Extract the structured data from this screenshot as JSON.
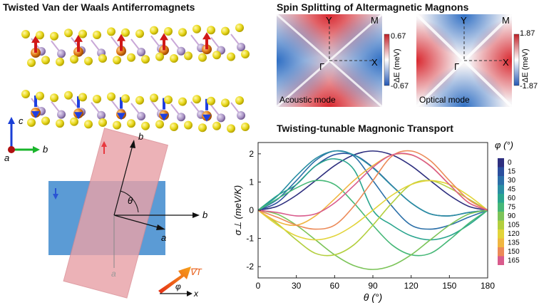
{
  "panels": {
    "crystal": {
      "title": "Twisted Van der Waals Antiferromagnets",
      "axes": {
        "c": "c",
        "b": "b",
        "a": "a"
      }
    },
    "spin_splitting": {
      "title": "Spin Splitting of Altermagnetic Magnons",
      "acoustic": {
        "points": {
          "y": "Y",
          "m": "M",
          "gamma": "Γ",
          "x": "X"
        },
        "mode_label": "Acoustic mode",
        "cbar_max": "0.67",
        "cbar_min": "-0.67",
        "cbar_label": "ΔE (meV)"
      },
      "optical": {
        "points": {
          "y": "Y",
          "m": "M",
          "gamma": "Γ",
          "x": "X"
        },
        "mode_label": "Optical mode",
        "cbar_max": "1.87",
        "cbar_min": "-1.87",
        "cbar_label": "ΔE (meV)"
      },
      "colors": {
        "positive": "#d9282f",
        "negative": "#2f6fc4"
      }
    },
    "geometry": {
      "labels": {
        "b_top": "b",
        "b_right": "b",
        "theta": "θ",
        "a_vec": "a",
        "a_faint": "a",
        "grad_t": "∇T",
        "phi": "φ",
        "x": "x"
      },
      "colors": {
        "bottom_layer": "#5b9bd5",
        "top_layer": "#e8a2a8",
        "up_spin": "#e8393f",
        "down_spin": "#2a55d4"
      }
    },
    "transport": {
      "title": "Twisting-tunable Magnonic Transport",
      "legend_title": "φ (°)",
      "legend_values": [
        "0",
        "15",
        "30",
        "45",
        "60",
        "75",
        "90",
        "105",
        "120",
        "135",
        "150",
        "165"
      ]
    }
  },
  "chart_data": {
    "type": "line",
    "title": "Twisting-tunable Magnonic Transport",
    "xlabel": "θ (°)",
    "ylabel": "σ⊥ (meV/K)",
    "xlim": [
      0,
      180
    ],
    "ylim": [
      -2.4,
      2.4
    ],
    "xticks": [
      0,
      30,
      60,
      90,
      120,
      150,
      180
    ],
    "yticks": [
      -2,
      -1,
      0,
      1,
      2
    ],
    "model": "sigma = 2.1 * sin(theta) * sin(theta + 2*phi)",
    "x": [
      0,
      15,
      30,
      45,
      60,
      75,
      90,
      105,
      120,
      135,
      150,
      165,
      180
    ],
    "series": [
      {
        "name": "0",
        "color": "#2e2f7f",
        "values": [
          0.0,
          0.14,
          0.53,
          1.05,
          1.58,
          1.96,
          2.1,
          1.96,
          1.58,
          1.05,
          0.53,
          0.14,
          0.0
        ]
      },
      {
        "name": "15",
        "color": "#2b4f9e",
        "values": [
          0.0,
          0.27,
          0.91,
          1.57,
          1.97,
          1.96,
          1.52,
          0.87,
          0.26,
          -0.13,
          -0.2,
          -0.08,
          0.0
        ]
      },
      {
        "name": "30",
        "color": "#2b6fa8",
        "values": [
          0.0,
          0.38,
          1.05,
          1.76,
          2.1,
          1.92,
          1.05,
          0.14,
          -0.53,
          -0.67,
          -0.53,
          -0.25,
          0.0
        ]
      },
      {
        "name": "45",
        "color": "#2a8ea3",
        "values": [
          0.0,
          0.5,
          1.22,
          1.83,
          2.1,
          1.96,
          1.5,
          0.86,
          0.26,
          -0.13,
          -0.2,
          -0.08,
          0.0
        ]
      },
      {
        "name": "60",
        "color": "#2aa58e",
        "values": [
          0.0,
          0.52,
          0.91,
          1.57,
          1.82,
          1.45,
          0.0,
          -0.53,
          -0.91,
          -1.05,
          -0.91,
          -0.52,
          0.0
        ]
      },
      {
        "name": "75",
        "color": "#46b877",
        "values": [
          0.0,
          0.4,
          0.79,
          1.05,
          0.91,
          0.26,
          -0.53,
          -1.23,
          -1.58,
          -1.53,
          -1.05,
          -0.47,
          0.0
        ]
      },
      {
        "name": "90",
        "color": "#7cc459",
        "values": [
          0.0,
          -0.14,
          -0.53,
          -1.05,
          -1.58,
          -1.96,
          -2.1,
          -1.96,
          -1.58,
          -1.05,
          -0.53,
          -0.14,
          0.0
        ]
      },
      {
        "name": "105",
        "color": "#b3cf3e",
        "values": [
          0.0,
          -0.47,
          -1.05,
          -1.53,
          -1.58,
          -1.23,
          -0.53,
          0.26,
          0.91,
          1.05,
          0.79,
          0.4,
          0.0
        ]
      },
      {
        "name": "120",
        "color": "#e2d43a",
        "values": [
          0.0,
          -0.52,
          -0.91,
          -1.05,
          -0.91,
          -0.53,
          0.0,
          0.53,
          0.91,
          1.05,
          0.91,
          0.52,
          0.0
        ]
      },
      {
        "name": "135",
        "color": "#f0b640",
        "values": [
          0.0,
          -0.4,
          -0.53,
          -0.2,
          0.4,
          1.05,
          1.58,
          1.96,
          1.96,
          1.58,
          0.91,
          0.27,
          0.0
        ]
      },
      {
        "name": "150",
        "color": "#ec8a58",
        "values": [
          0.0,
          -0.25,
          -0.53,
          -0.67,
          -0.53,
          0.14,
          1.05,
          1.92,
          2.1,
          1.76,
          1.05,
          0.38,
          0.0
        ]
      },
      {
        "name": "165",
        "color": "#d95b8c",
        "values": [
          0.0,
          -0.08,
          -0.2,
          -0.13,
          0.26,
          0.87,
          1.52,
          1.96,
          1.97,
          1.57,
          0.91,
          0.27,
          0.0
        ]
      }
    ]
  }
}
